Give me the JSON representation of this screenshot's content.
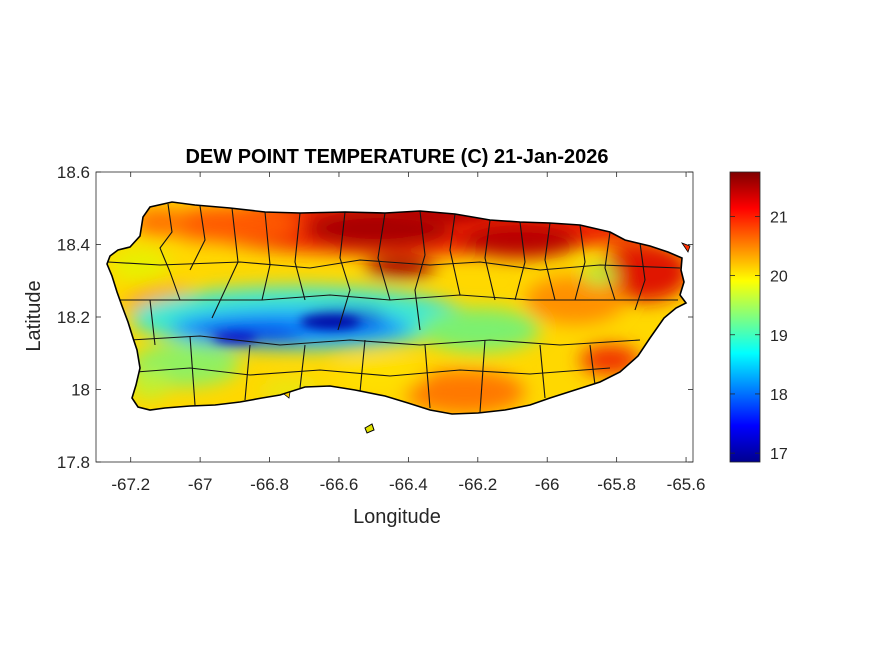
{
  "figure": {
    "title": "DEW POINT TEMPERATURE (C) 21-Jan-2026",
    "xlabel": "Longitude",
    "ylabel": "Latitude"
  },
  "x_axis": {
    "range": [
      -67.3,
      -65.58
    ],
    "ticks": [
      -67.2,
      -67,
      -66.8,
      -66.6,
      -66.4,
      -66.2,
      -66,
      -65.8,
      -65.6
    ],
    "tick_labels": [
      "-67.2",
      "-67",
      "-66.8",
      "-66.6",
      "-66.4",
      "-66.2",
      "-66",
      "-65.8",
      "-65.6"
    ]
  },
  "y_axis": {
    "range": [
      17.8,
      18.6
    ],
    "ticks": [
      17.8,
      18,
      18.2,
      18.4,
      18.6
    ],
    "tick_labels": [
      "17.8",
      "18",
      "18.2",
      "18.4",
      "18.6"
    ]
  },
  "colorbar": {
    "colormap": "jet",
    "range": [
      16.85,
      21.75
    ],
    "ticks": [
      17,
      18,
      19,
      20,
      21
    ],
    "tick_labels": [
      "17",
      "18",
      "19",
      "20",
      "21"
    ]
  },
  "chart_data": {
    "type": "heatmap",
    "title": "DEW POINT TEMPERATURE (C) 21-Jan-2026",
    "xlabel": "Longitude",
    "ylabel": "Latitude",
    "xlim": [
      -67.3,
      -65.58
    ],
    "ylim": [
      17.8,
      18.6
    ],
    "clim": [
      16.85,
      21.75
    ],
    "region": "Puerto Rico",
    "features": [
      {
        "name": "north coast",
        "value": 21.5
      },
      {
        "name": "central mountain band",
        "value": 17.3
      },
      {
        "name": "southwest",
        "value": 19.5
      },
      {
        "name": "south coast",
        "value": 20.6
      },
      {
        "name": "east",
        "value": 21.0
      }
    ]
  }
}
